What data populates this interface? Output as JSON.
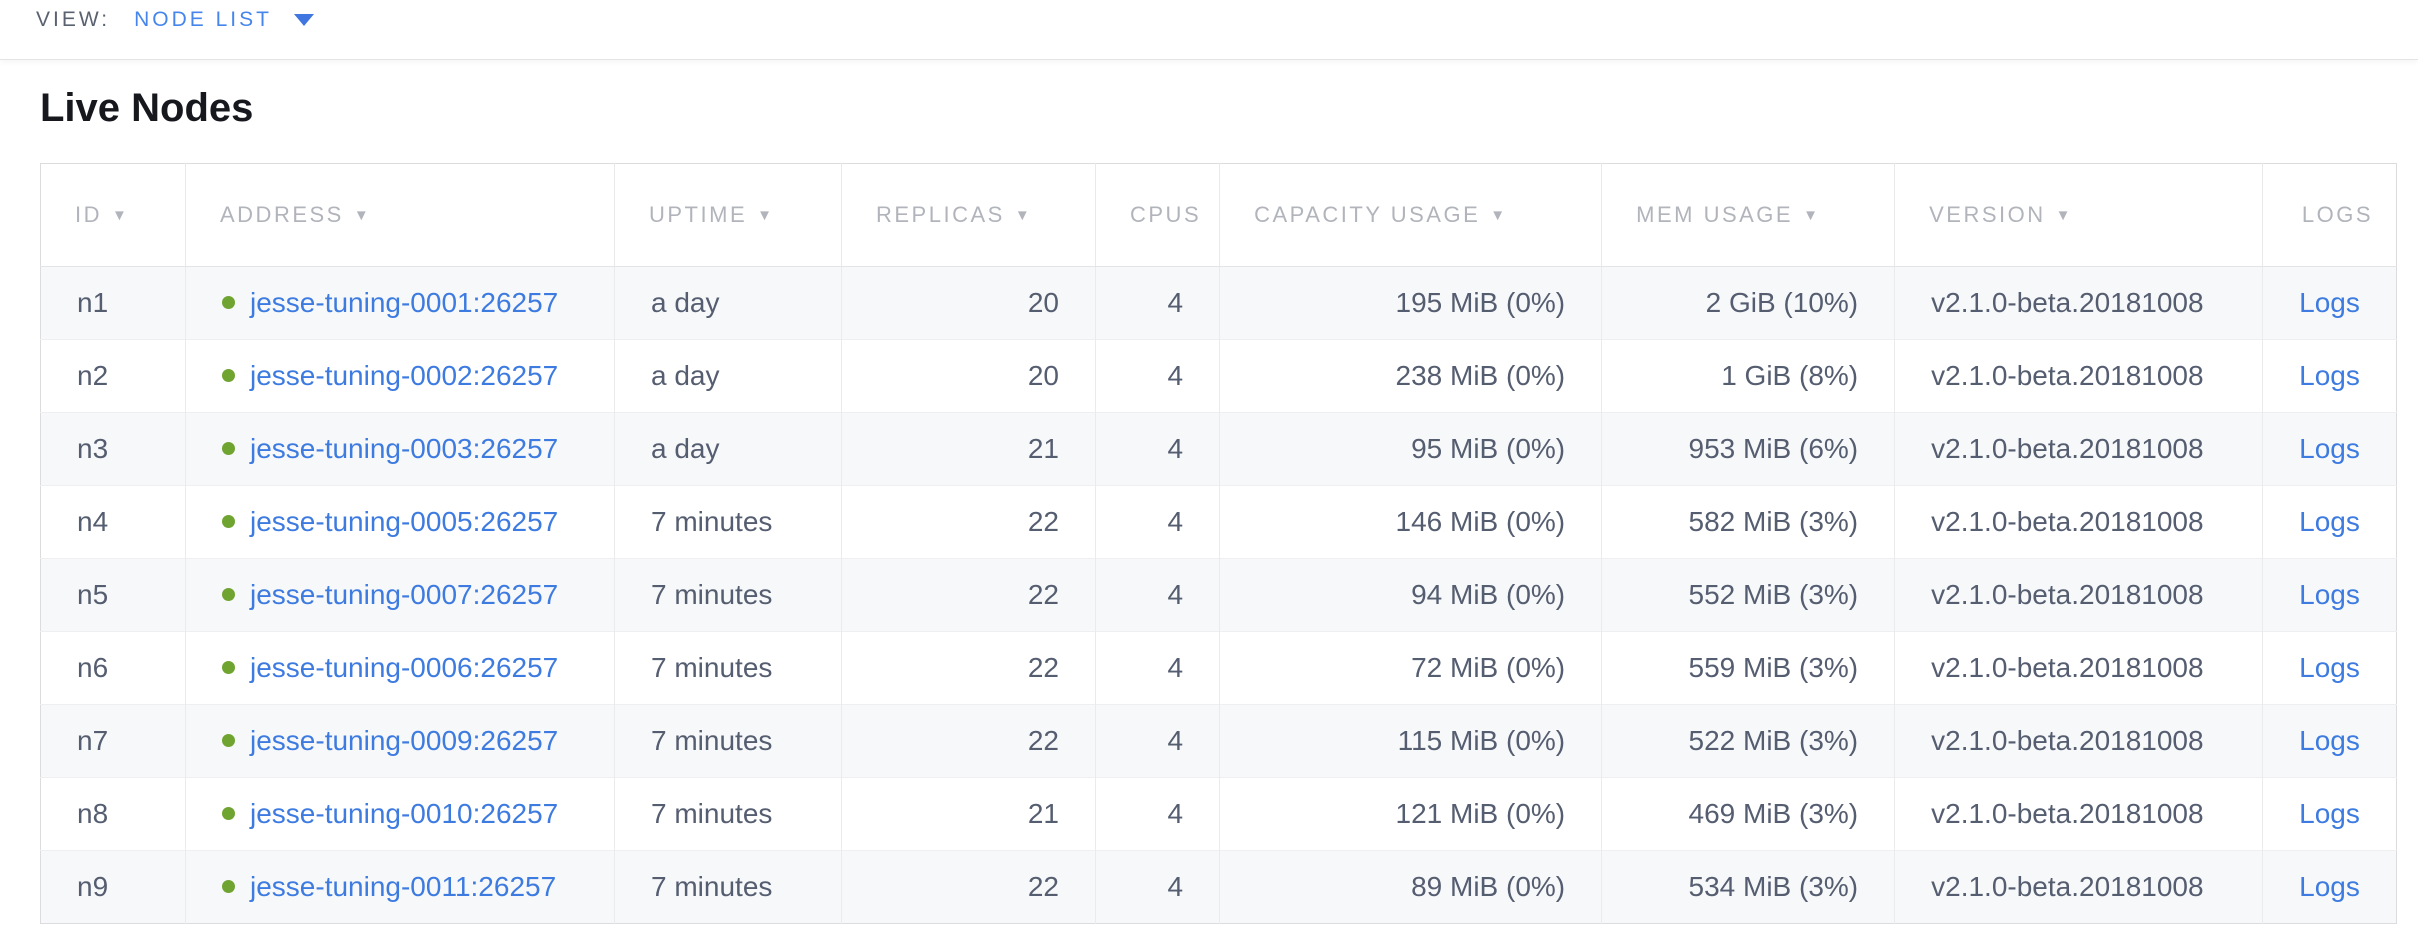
{
  "view_bar": {
    "label": "VIEW:",
    "selected": "NODE LIST"
  },
  "page": {
    "title": "Live Nodes"
  },
  "colors": {
    "link_blue": "#3d7be0",
    "selector_blue": "#4686ec",
    "live_green": "#70a431",
    "header_gray": "#b1b4bb",
    "cell_text": "#555d70",
    "row_stripe": "#f7f8f9"
  },
  "table": {
    "columns": [
      {
        "key": "id",
        "label": "ID",
        "sortable": true,
        "align": "left"
      },
      {
        "key": "address",
        "label": "ADDRESS",
        "sortable": true,
        "align": "left"
      },
      {
        "key": "uptime",
        "label": "UPTIME",
        "sortable": true,
        "align": "left"
      },
      {
        "key": "replicas",
        "label": "REPLICAS",
        "sortable": true,
        "align": "right"
      },
      {
        "key": "cpus",
        "label": "CPUS",
        "sortable": false,
        "align": "right"
      },
      {
        "key": "capacity",
        "label": "CAPACITY USAGE",
        "sortable": true,
        "align": "right"
      },
      {
        "key": "mem",
        "label": "MEM USAGE",
        "sortable": true,
        "align": "right"
      },
      {
        "key": "version",
        "label": "VERSION",
        "sortable": true,
        "align": "left"
      },
      {
        "key": "logs",
        "label": "LOGS",
        "sortable": false,
        "align": "center"
      }
    ],
    "rows": [
      {
        "id": "n1",
        "status": "live",
        "address": "jesse-tuning-0001:26257",
        "uptime": "a day",
        "replicas": "20",
        "cpus": "4",
        "capacity": "195 MiB (0%)",
        "mem": "2 GiB (10%)",
        "version": "v2.1.0-beta.20181008",
        "logs": "Logs"
      },
      {
        "id": "n2",
        "status": "live",
        "address": "jesse-tuning-0002:26257",
        "uptime": "a day",
        "replicas": "20",
        "cpus": "4",
        "capacity": "238 MiB (0%)",
        "mem": "1 GiB (8%)",
        "version": "v2.1.0-beta.20181008",
        "logs": "Logs"
      },
      {
        "id": "n3",
        "status": "live",
        "address": "jesse-tuning-0003:26257",
        "uptime": "a day",
        "replicas": "21",
        "cpus": "4",
        "capacity": "95 MiB (0%)",
        "mem": "953 MiB (6%)",
        "version": "v2.1.0-beta.20181008",
        "logs": "Logs"
      },
      {
        "id": "n4",
        "status": "live",
        "address": "jesse-tuning-0005:26257",
        "uptime": "7 minutes",
        "replicas": "22",
        "cpus": "4",
        "capacity": "146 MiB (0%)",
        "mem": "582 MiB (3%)",
        "version": "v2.1.0-beta.20181008",
        "logs": "Logs"
      },
      {
        "id": "n5",
        "status": "live",
        "address": "jesse-tuning-0007:26257",
        "uptime": "7 minutes",
        "replicas": "22",
        "cpus": "4",
        "capacity": "94 MiB (0%)",
        "mem": "552 MiB (3%)",
        "version": "v2.1.0-beta.20181008",
        "logs": "Logs"
      },
      {
        "id": "n6",
        "status": "live",
        "address": "jesse-tuning-0006:26257",
        "uptime": "7 minutes",
        "replicas": "22",
        "cpus": "4",
        "capacity": "72 MiB (0%)",
        "mem": "559 MiB (3%)",
        "version": "v2.1.0-beta.20181008",
        "logs": "Logs"
      },
      {
        "id": "n7",
        "status": "live",
        "address": "jesse-tuning-0009:26257",
        "uptime": "7 minutes",
        "replicas": "22",
        "cpus": "4",
        "capacity": "115 MiB (0%)",
        "mem": "522 MiB (3%)",
        "version": "v2.1.0-beta.20181008",
        "logs": "Logs"
      },
      {
        "id": "n8",
        "status": "live",
        "address": "jesse-tuning-0010:26257",
        "uptime": "7 minutes",
        "replicas": "21",
        "cpus": "4",
        "capacity": "121 MiB (0%)",
        "mem": "469 MiB (3%)",
        "version": "v2.1.0-beta.20181008",
        "logs": "Logs"
      },
      {
        "id": "n9",
        "status": "live",
        "address": "jesse-tuning-0011:26257",
        "uptime": "7 minutes",
        "replicas": "22",
        "cpus": "4",
        "capacity": "89 MiB (0%)",
        "mem": "534 MiB (3%)",
        "version": "v2.1.0-beta.20181008",
        "logs": "Logs"
      }
    ]
  }
}
